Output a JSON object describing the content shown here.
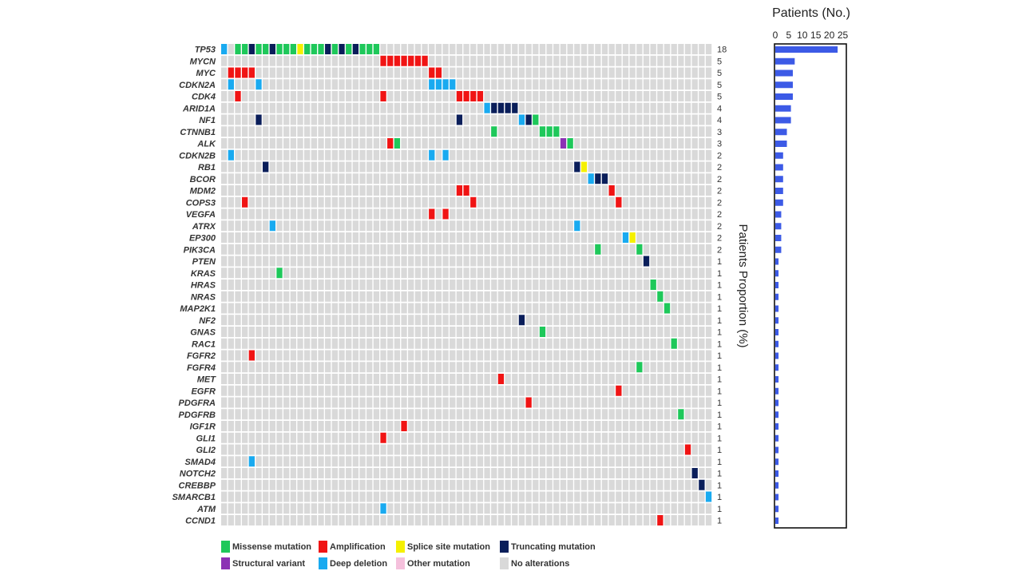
{
  "chart_data": {
    "type": "heatmap",
    "n_patients": 69,
    "status_colors": {
      "mis": "#1ec85a",
      "amp": "#f01414",
      "spl": "#f5f000",
      "trunc": "#0a1e5a",
      "sv": "#8c32b4",
      "del": "#19aaf0",
      "other": "#f5c0dc",
      "none": "#d9d9d9"
    },
    "genes": [
      "TP53",
      "MYCN",
      "MYC",
      "CDKN2A",
      "CDK4",
      "ARID1A",
      "NF1",
      "CTNNB1",
      "ALK",
      "CDKN2B",
      "RB1",
      "BCOR",
      "MDM2",
      "COPS3",
      "VEGFA",
      "ATRX",
      "EP300",
      "PIK3CA",
      "PTEN",
      "KRAS",
      "HRAS",
      "NRAS",
      "MAP2K1",
      "NF2",
      "GNAS",
      "RAC1",
      "FGFR2",
      "FGFR4",
      "MET",
      "EGFR",
      "PDGFRA",
      "PDGFRB",
      "IGF1R",
      "GLI1",
      "GLI2",
      "SMAD4",
      "NOTCH2",
      "CREBBP",
      "SMARCB1",
      "ATM",
      "CCND1"
    ],
    "counts": [
      "18",
      "5",
      "5",
      "5",
      "5",
      "4",
      "4",
      "3",
      "3",
      "2",
      "2",
      "2",
      "2",
      "2",
      "2",
      "2",
      "2",
      "2",
      "1",
      "1",
      "1",
      "1",
      "1",
      "1",
      "1",
      "1",
      "1",
      "1",
      "1",
      "1",
      "1",
      "1",
      "1",
      "1",
      "1",
      "1",
      "1",
      "1",
      "1",
      "1",
      "1"
    ],
    "alterations": [
      [
        [
          0,
          "del"
        ],
        [
          2,
          "mis"
        ],
        [
          3,
          "mis"
        ],
        [
          4,
          "trunc"
        ],
        [
          5,
          "mis"
        ],
        [
          6,
          "mis"
        ],
        [
          7,
          "trunc"
        ],
        [
          8,
          "mis"
        ],
        [
          9,
          "mis"
        ],
        [
          10,
          "mis"
        ],
        [
          11,
          "spl"
        ],
        [
          12,
          "mis"
        ],
        [
          13,
          "mis"
        ],
        [
          14,
          "mis"
        ],
        [
          15,
          "trunc"
        ],
        [
          16,
          "mis"
        ],
        [
          17,
          "trunc"
        ],
        [
          18,
          "mis"
        ],
        [
          19,
          "trunc"
        ],
        [
          20,
          "mis"
        ],
        [
          21,
          "mis"
        ],
        [
          22,
          "mis"
        ]
      ],
      [
        [
          23,
          "amp"
        ],
        [
          24,
          "amp"
        ],
        [
          25,
          "amp"
        ],
        [
          26,
          "amp"
        ],
        [
          27,
          "amp"
        ],
        [
          28,
          "amp"
        ],
        [
          29,
          "amp"
        ]
      ],
      [
        [
          1,
          "amp"
        ],
        [
          2,
          "amp"
        ],
        [
          3,
          "amp"
        ],
        [
          4,
          "amp"
        ],
        [
          30,
          "amp"
        ],
        [
          31,
          "amp"
        ]
      ],
      [
        [
          1,
          "del"
        ],
        [
          5,
          "del"
        ],
        [
          30,
          "del"
        ],
        [
          31,
          "del"
        ],
        [
          32,
          "del"
        ],
        [
          33,
          "del"
        ]
      ],
      [
        [
          2,
          "amp"
        ],
        [
          23,
          "amp"
        ],
        [
          34,
          "amp"
        ],
        [
          35,
          "amp"
        ],
        [
          36,
          "amp"
        ],
        [
          37,
          "amp"
        ]
      ],
      [
        [
          38,
          "del"
        ],
        [
          39,
          "trunc"
        ],
        [
          40,
          "trunc"
        ],
        [
          41,
          "trunc"
        ],
        [
          42,
          "trunc"
        ]
      ],
      [
        [
          5,
          "trunc"
        ],
        [
          34,
          "trunc"
        ],
        [
          43,
          "del"
        ],
        [
          44,
          "trunc"
        ],
        [
          45,
          "mis"
        ]
      ],
      [
        [
          39,
          "mis"
        ],
        [
          46,
          "mis"
        ],
        [
          47,
          "mis"
        ],
        [
          48,
          "mis"
        ]
      ],
      [
        [
          24,
          "amp"
        ],
        [
          25,
          "mis"
        ],
        [
          49,
          "sv"
        ],
        [
          50,
          "mis"
        ]
      ],
      [
        [
          1,
          "del"
        ],
        [
          30,
          "del"
        ],
        [
          32,
          "del"
        ]
      ],
      [
        [
          6,
          "trunc"
        ],
        [
          51,
          "trunc"
        ],
        [
          52,
          "spl"
        ]
      ],
      [
        [
          53,
          "del"
        ],
        [
          54,
          "trunc"
        ],
        [
          55,
          "trunc"
        ]
      ],
      [
        [
          34,
          "amp"
        ],
        [
          35,
          "amp"
        ],
        [
          56,
          "amp"
        ]
      ],
      [
        [
          3,
          "amp"
        ],
        [
          36,
          "amp"
        ],
        [
          57,
          "amp"
        ]
      ],
      [
        [
          30,
          "amp"
        ],
        [
          32,
          "amp"
        ]
      ],
      [
        [
          7,
          "del"
        ],
        [
          51,
          "del"
        ]
      ],
      [
        [
          58,
          "del"
        ],
        [
          59,
          "spl"
        ]
      ],
      [
        [
          54,
          "mis"
        ],
        [
          60,
          "mis"
        ]
      ],
      [
        [
          61,
          "trunc"
        ]
      ],
      [
        [
          8,
          "mis"
        ]
      ],
      [
        [
          62,
          "mis"
        ]
      ],
      [
        [
          63,
          "mis"
        ]
      ],
      [
        [
          64,
          "mis"
        ]
      ],
      [
        [
          43,
          "trunc"
        ]
      ],
      [
        [
          46,
          "mis"
        ]
      ],
      [
        [
          65,
          "mis"
        ]
      ],
      [
        [
          4,
          "amp"
        ]
      ],
      [
        [
          60,
          "mis"
        ]
      ],
      [
        [
          40,
          "amp"
        ]
      ],
      [
        [
          57,
          "amp"
        ]
      ],
      [
        [
          44,
          "amp"
        ]
      ],
      [
        [
          66,
          "mis"
        ]
      ],
      [
        [
          26,
          "amp"
        ]
      ],
      [
        [
          23,
          "amp"
        ]
      ],
      [
        [
          67,
          "amp"
        ]
      ],
      [
        [
          4,
          "del"
        ]
      ],
      [
        [
          68,
          "trunc"
        ]
      ],
      [
        [
          69,
          "trunc"
        ]
      ],
      [
        [
          70,
          "del"
        ]
      ],
      [
        [
          23,
          "del"
        ]
      ],
      [
        [
          63,
          "amp"
        ]
      ]
    ],
    "bar_values": [
      23.1,
      7.2,
      6.5,
      6.5,
      6.5,
      5.8,
      5.8,
      4.3,
      4.3,
      2.9,
      2.9,
      2.9,
      2.9,
      2.9,
      2.2,
      2.2,
      2.2,
      2.2,
      1.2,
      1.2,
      1.2,
      1.2,
      1.2,
      1.2,
      1.2,
      1.2,
      1.2,
      1.2,
      1.2,
      1.2,
      1.2,
      1.2,
      1.2,
      1.2,
      1.2,
      1.2,
      1.2,
      1.2,
      1.2,
      1.2,
      1.2
    ],
    "bar_color": "#3c5ae6",
    "bar_axis": {
      "title": "Patients (No.)",
      "ticks": [
        "0",
        "5",
        "10",
        "15",
        "20",
        "25"
      ],
      "xlim": [
        0,
        25
      ]
    },
    "side_title": "Patients Proportion (%)",
    "legend": [
      {
        "key": "mis",
        "label": "Missense mutation"
      },
      {
        "key": "amp",
        "label": "Amplification"
      },
      {
        "key": "spl",
        "label": "Splice site mutation"
      },
      {
        "key": "trunc",
        "label": "Truncating mutation"
      },
      {
        "key": "sv",
        "label": "Structural variant"
      },
      {
        "key": "del",
        "label": "Deep deletion"
      },
      {
        "key": "other",
        "label": "Other mutation"
      },
      {
        "key": "none",
        "label": "No alterations"
      }
    ]
  }
}
